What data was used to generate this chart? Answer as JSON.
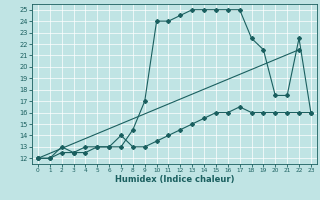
{
  "title": "",
  "xlabel": "Humidex (Indice chaleur)",
  "bg_color": "#c0e4e4",
  "line_color": "#1a5f5f",
  "grid_color": "#ffffff",
  "xlim": [
    -0.5,
    23.5
  ],
  "ylim": [
    11.5,
    25.5
  ],
  "xticks": [
    0,
    1,
    2,
    3,
    4,
    5,
    6,
    7,
    8,
    9,
    10,
    11,
    12,
    13,
    14,
    15,
    16,
    17,
    18,
    19,
    20,
    21,
    22,
    23
  ],
  "yticks": [
    12,
    13,
    14,
    15,
    16,
    17,
    18,
    19,
    20,
    21,
    22,
    23,
    24,
    25
  ],
  "line1_x": [
    0,
    1,
    2,
    3,
    4,
    5,
    6,
    7,
    8,
    9,
    10,
    11,
    12,
    13,
    14,
    15,
    16,
    17,
    18,
    19,
    20,
    21,
    22,
    23
  ],
  "line1_y": [
    12,
    12,
    13,
    12.5,
    13,
    13,
    13,
    14,
    13,
    13,
    13.5,
    14,
    14.5,
    15,
    15.5,
    16,
    16,
    16.5,
    16,
    16,
    16,
    16,
    16,
    16
  ],
  "line2_x": [
    0,
    22
  ],
  "line2_y": [
    12,
    21.5
  ],
  "line3_x": [
    0,
    1,
    2,
    3,
    4,
    5,
    6,
    7,
    8,
    9,
    10,
    11,
    12,
    13,
    14,
    15,
    16,
    17,
    18,
    19,
    20,
    21,
    22,
    23
  ],
  "line3_y": [
    12,
    12,
    12.5,
    12.5,
    12.5,
    13,
    13,
    13,
    14.5,
    17,
    24,
    24,
    24.5,
    25,
    25,
    25,
    25,
    25,
    22.5,
    21.5,
    17.5,
    17.5,
    22.5,
    16
  ],
  "tick_fontsize": 5,
  "xlabel_fontsize": 6,
  "marker_size": 2.0,
  "linewidth": 0.8
}
